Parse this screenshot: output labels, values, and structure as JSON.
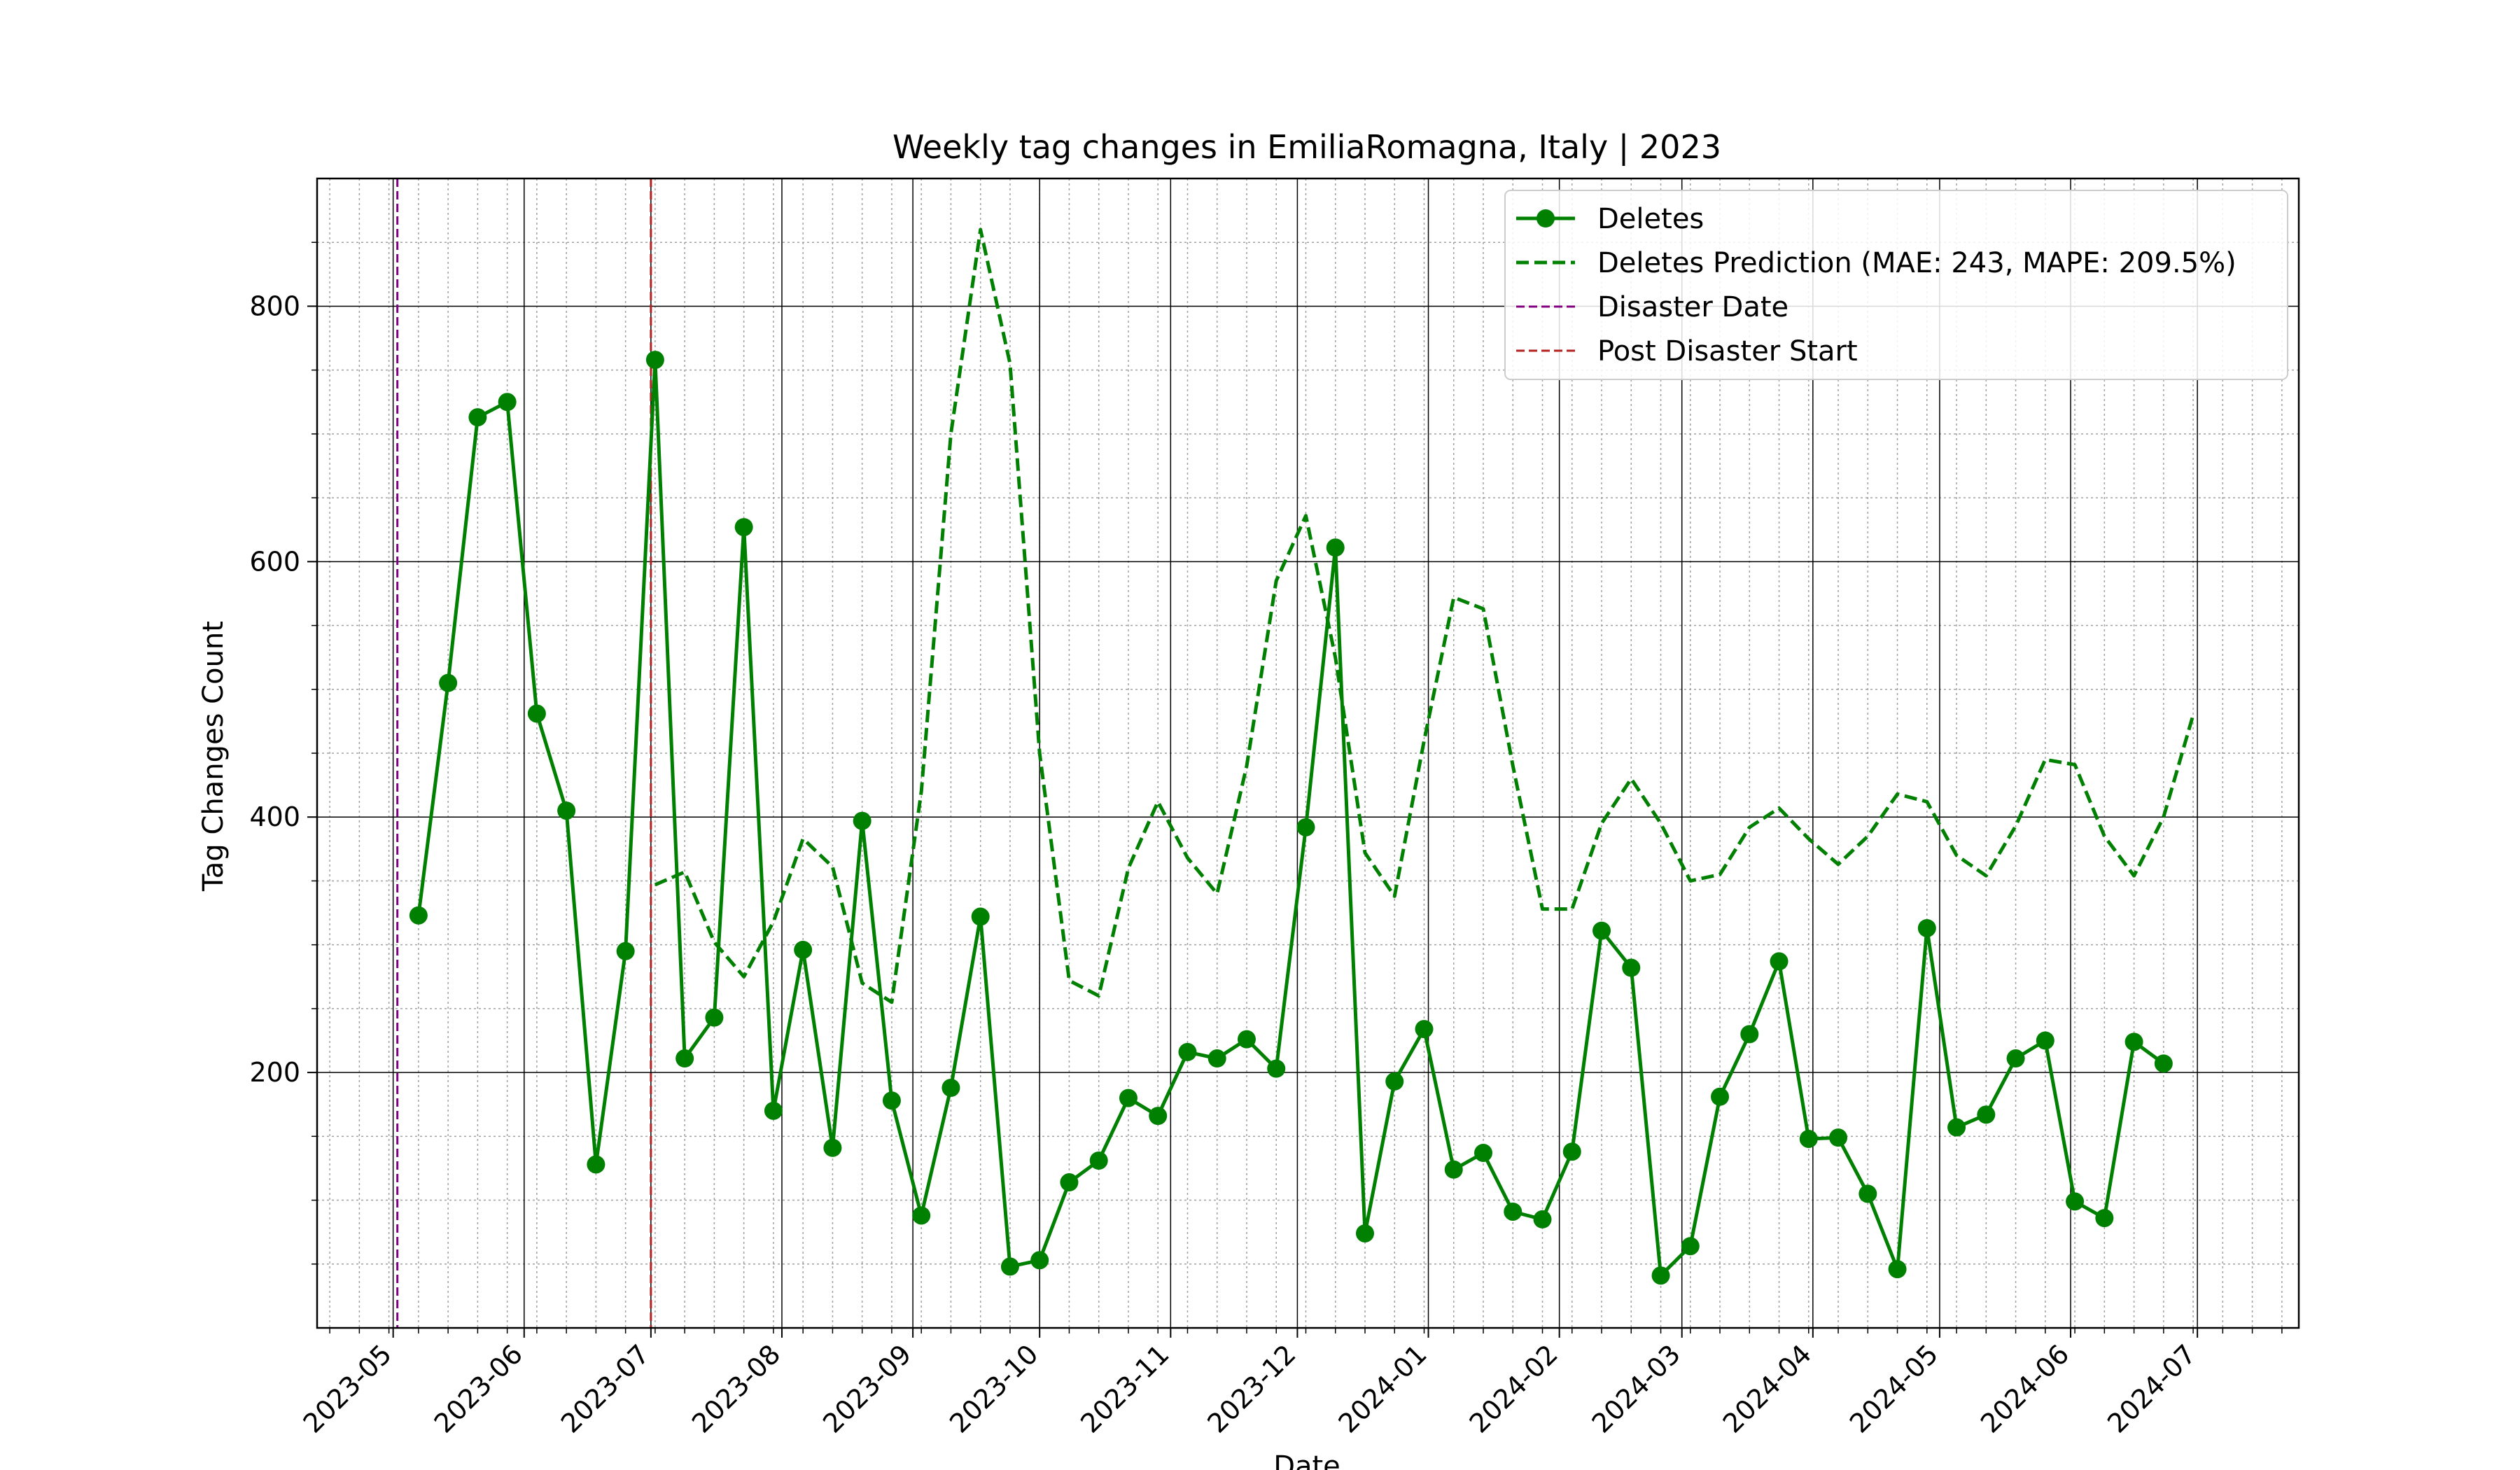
{
  "chart_data": {
    "type": "line",
    "title": "Weekly tag changes in EmiliaRomagna, Italy | 2023",
    "xlabel": "Date",
    "ylabel": "Tag Changes Count",
    "x_type": "date",
    "xlim": [
      "2023-04-13",
      "2024-07-25"
    ],
    "ylim": [
      0,
      900
    ],
    "y_ticks": [
      200,
      400,
      600,
      800
    ],
    "x_ticks": [
      "2023-05",
      "2023-06",
      "2023-07",
      "2023-08",
      "2023-09",
      "2023-10",
      "2023-11",
      "2023-12",
      "2024-01",
      "2024-02",
      "2024-03",
      "2024-04",
      "2024-05",
      "2024-06",
      "2024-07"
    ],
    "grid": true,
    "legend_position": "top-right",
    "series": [
      {
        "name": "Deletes",
        "style": "solid-markers",
        "color": "#008000",
        "x": [
          "2023-05-07",
          "2023-05-14",
          "2023-05-21",
          "2023-05-28",
          "2023-06-04",
          "2023-06-11",
          "2023-06-18",
          "2023-06-25",
          "2023-07-02",
          "2023-07-09",
          "2023-07-16",
          "2023-07-23",
          "2023-07-30",
          "2023-08-06",
          "2023-08-13",
          "2023-08-20",
          "2023-08-27",
          "2023-09-03",
          "2023-09-10",
          "2023-09-17",
          "2023-09-24",
          "2023-10-01",
          "2023-10-08",
          "2023-10-15",
          "2023-10-22",
          "2023-10-29",
          "2023-11-05",
          "2023-11-12",
          "2023-11-19",
          "2023-11-26",
          "2023-12-03",
          "2023-12-10",
          "2023-12-17",
          "2023-12-24",
          "2023-12-31",
          "2024-01-07",
          "2024-01-14",
          "2024-01-21",
          "2024-01-28",
          "2024-02-04",
          "2024-02-11",
          "2024-02-18",
          "2024-02-25",
          "2024-03-03",
          "2024-03-10",
          "2024-03-17",
          "2024-03-24",
          "2024-03-31",
          "2024-04-07",
          "2024-04-14",
          "2024-04-21",
          "2024-04-28",
          "2024-05-05",
          "2024-05-12",
          "2024-05-19",
          "2024-05-26",
          "2024-06-02",
          "2024-06-09",
          "2024-06-16",
          "2024-06-23"
        ],
        "values": [
          323,
          505,
          713,
          725,
          481,
          405,
          128,
          295,
          758,
          211,
          243,
          627,
          170,
          296,
          141,
          397,
          178,
          88,
          188,
          322,
          48,
          53,
          114,
          131,
          180,
          166,
          216,
          211,
          226,
          203,
          392,
          611,
          74,
          193,
          234,
          124,
          137,
          91,
          85,
          138,
          311,
          282,
          41,
          64,
          181,
          230,
          287,
          148,
          149,
          105,
          46,
          313,
          157,
          167,
          211,
          225,
          99,
          86,
          224,
          207
        ]
      },
      {
        "name": "Deletes Prediction (MAE: 243, MAPE: 209.5%)",
        "style": "dashed",
        "color": "#008000",
        "x": [
          "2023-07-02",
          "2023-07-09",
          "2023-07-16",
          "2023-07-23",
          "2023-07-30",
          "2023-08-06",
          "2023-08-13",
          "2023-08-20",
          "2023-08-27",
          "2023-09-03",
          "2023-09-10",
          "2023-09-17",
          "2023-09-24",
          "2023-10-01",
          "2023-10-08",
          "2023-10-15",
          "2023-10-22",
          "2023-10-29",
          "2023-11-05",
          "2023-11-12",
          "2023-11-19",
          "2023-11-26",
          "2023-12-03",
          "2023-12-10",
          "2023-12-17",
          "2023-12-24",
          "2023-12-31",
          "2024-01-07",
          "2024-01-14",
          "2024-01-21",
          "2024-01-28",
          "2024-02-04",
          "2024-02-11",
          "2024-02-18",
          "2024-02-25",
          "2024-03-03",
          "2024-03-10",
          "2024-03-17",
          "2024-03-24",
          "2024-03-31",
          "2024-04-07",
          "2024-04-14",
          "2024-04-21",
          "2024-04-28",
          "2024-05-05",
          "2024-05-12",
          "2024-05-19",
          "2024-05-26",
          "2024-06-02",
          "2024-06-09",
          "2024-06-16",
          "2024-06-23",
          "2024-06-30"
        ],
        "values": [
          347,
          357,
          302,
          275,
          318,
          383,
          361,
          270,
          255,
          420,
          700,
          860,
          755,
          450,
          272,
          260,
          360,
          412,
          368,
          340,
          440,
          585,
          636,
          525,
          372,
          338,
          460,
          572,
          563,
          440,
          328,
          328,
          395,
          430,
          395,
          350,
          355,
          392,
          407,
          383,
          363,
          385,
          418,
          412,
          370,
          354,
          393,
          445,
          441,
          385,
          354,
          400,
          480
        ]
      }
    ],
    "vertical_lines": [
      {
        "name": "Disaster Date",
        "x": "2023-05-02",
        "color": "#800080"
      },
      {
        "name": "Post Disaster Start",
        "x": "2023-07-01",
        "color": "#b22222"
      }
    ]
  }
}
